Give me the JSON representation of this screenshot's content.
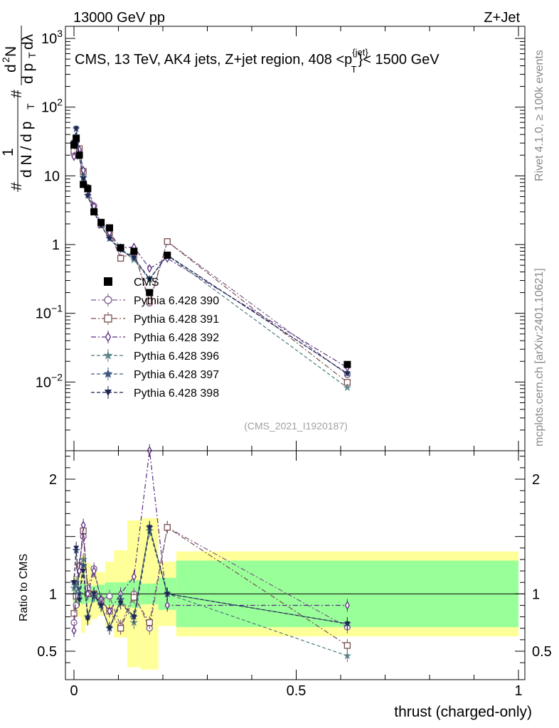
{
  "header": {
    "left_title": "13000 GeV pp",
    "right_title": "Z+Jet"
  },
  "side_text": {
    "rivet": "Rivet 4.1.0, ≥ 100k events",
    "mcplots": "mcplots.cern.ch [arXiv:2401.10621]"
  },
  "chart_data": {
    "type": "scatter",
    "title": "CMS, 13 TeV, AK4 jets, Z+jet region, 408 <p_T^{jet}< 1500 GeV",
    "title_main": "CMS, 13 TeV, AK4 jets, Z+jet region, 408 <p",
    "title_sup": "{jet}",
    "title_sub": "T",
    "title_tail": "}< 1500 GeV",
    "analysis_id": "(CMS_2021_I1920187)",
    "xlabel": "thrust (charged-only)",
    "ylabel": "1/dN/dp_T  dN^2/dp_T dλ",
    "ylabel_main": "# 1 / d N / d p_T  # d²N / d p_T dλ",
    "ratio_ylabel": "Ratio to CMS",
    "xlim": [
      -0.02,
      1.0
    ],
    "ylim": [
      0.001,
      1500
    ],
    "ratio_ylim": [
      0.34,
      2.3
    ],
    "x_ticks": [
      0,
      0.5,
      1
    ],
    "x_tick_labels": [
      "0",
      "0.5",
      "1"
    ],
    "y_tick_labels": [
      {
        "base": "10",
        "exp": "3"
      },
      {
        "base": "10",
        "exp": "2"
      },
      {
        "base": "10",
        "exp": ""
      },
      {
        "base": "1",
        "exp": ""
      },
      {
        "base": "10",
        "exp": "−1"
      },
      {
        "base": "10",
        "exp": "−2"
      }
    ],
    "y_tick_values": [
      1000,
      100,
      10,
      1,
      0.1,
      0.01
    ],
    "ratio_ticks": [
      0.5,
      1,
      2
    ],
    "ratio_tick_labels": [
      "0.5",
      "1",
      "2"
    ],
    "bins": [
      {
        "lo": -0.002,
        "hi": 0.002
      },
      {
        "lo": 0.002,
        "hi": 0.008
      },
      {
        "lo": 0.008,
        "hi": 0.016
      },
      {
        "lo": 0.016,
        "hi": 0.025
      },
      {
        "lo": 0.025,
        "hi": 0.038
      },
      {
        "lo": 0.038,
        "hi": 0.052
      },
      {
        "lo": 0.052,
        "hi": 0.07
      },
      {
        "lo": 0.07,
        "hi": 0.09
      },
      {
        "lo": 0.09,
        "hi": 0.12
      },
      {
        "lo": 0.12,
        "hi": 0.15
      },
      {
        "lo": 0.15,
        "hi": 0.19
      },
      {
        "lo": 0.19,
        "hi": 0.23
      },
      {
        "lo": 0.23,
        "hi": 1.0
      }
    ],
    "x": [
      0.0,
      0.005,
      0.012,
      0.021,
      0.031,
      0.045,
      0.061,
      0.08,
      0.105,
      0.135,
      0.17,
      0.21,
      0.615
    ],
    "data": {
      "name": "CMS",
      "values": [
        28,
        35,
        20,
        7.5,
        6.5,
        3.0,
        2.1,
        1.75,
        0.9,
        0.8,
        0.2,
        0.7,
        0.018
      ],
      "band_stat": [
        0.1,
        0.06,
        0.08,
        0.09,
        0.08,
        0.07,
        0.08,
        0.1,
        0.1,
        0.12,
        0.09,
        0.14,
        0.29
      ],
      "band_total": [
        0.18,
        0.15,
        0.2,
        0.34,
        0.27,
        0.22,
        0.19,
        0.28,
        0.38,
        0.64,
        0.66,
        0.28,
        0.37
      ]
    },
    "series": [
      {
        "name": "Pythia 6.428 390",
        "color": "#7b5b8c",
        "marker": "circle-open",
        "dash": "dashdot",
        "ratio": [
          0.75,
          0.9,
          1.25,
          1.5,
          1.05,
          1.22,
          0.95,
          0.98,
          0.72,
          1.0,
          0.7,
          1.58,
          0.71
        ]
      },
      {
        "name": "Pythia 6.428 391",
        "color": "#7a4f4f",
        "marker": "square-open",
        "dash": "dashdot",
        "ratio": [
          0.83,
          0.98,
          1.24,
          1.55,
          1.0,
          1.0,
          0.93,
          0.85,
          0.7,
          0.97,
          0.75,
          1.58,
          0.55
        ]
      },
      {
        "name": "Pythia 6.428 392",
        "color": "#5a2d82",
        "marker": "diamond-open",
        "dash": "dashdot",
        "ratio": [
          0.68,
          1.05,
          1.2,
          1.6,
          1.0,
          1.2,
          0.95,
          0.85,
          1.0,
          1.15,
          2.25,
          0.9,
          0.9
        ]
      },
      {
        "name": "Pythia 6.428 396",
        "color": "#4d7a80",
        "marker": "star-thin",
        "dash": "dash",
        "ratio": [
          1.05,
          1.1,
          0.95,
          1.3,
          0.8,
          1.0,
          0.9,
          0.7,
          0.95,
          0.75,
          1.55,
          1.0,
          0.46
        ]
      },
      {
        "name": "Pythia 6.428 397",
        "color": "#3e5a80",
        "marker": "star-bold",
        "dash": "dash",
        "ratio": [
          1.1,
          1.38,
          1.0,
          1.25,
          0.8,
          0.98,
          0.9,
          0.7,
          0.95,
          0.8,
          1.58,
          1.0,
          0.74
        ]
      },
      {
        "name": "Pythia 6.428 398",
        "color": "#20264f",
        "marker": "triangle-down",
        "dash": "dash",
        "ratio": [
          1.1,
          1.4,
          0.95,
          1.2,
          0.78,
          1.0,
          0.9,
          0.7,
          0.92,
          0.8,
          1.58,
          1.0,
          0.74
        ]
      }
    ],
    "legend_position": "left-middle",
    "grid": false
  }
}
